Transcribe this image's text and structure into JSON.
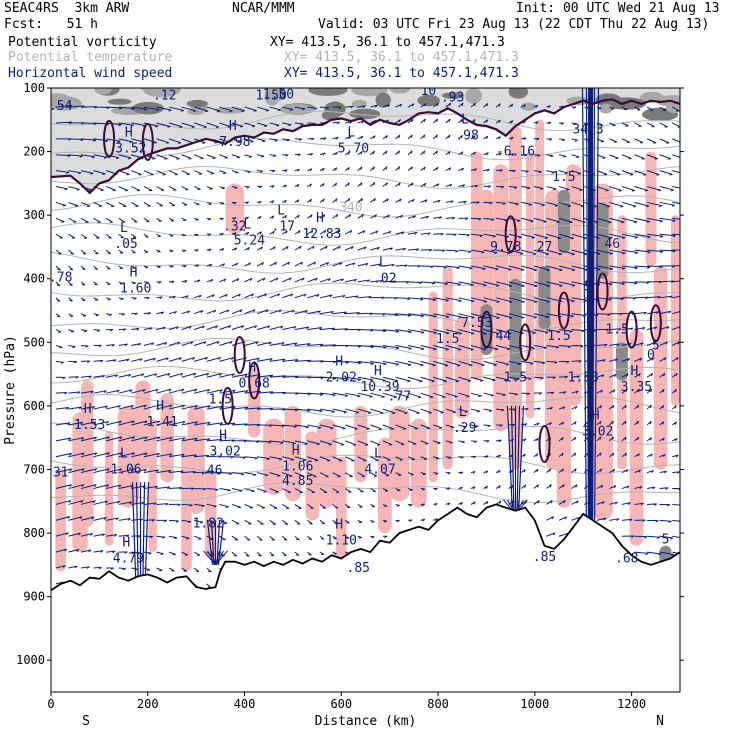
{
  "header": {
    "model": "SEAC4RS  3km ARW",
    "org": "NCAR/MMM",
    "init": "Init: 00 UTC Wed 21 Aug 13",
    "fcst": "Fcst:   51 h",
    "valid": "Valid: 03 UTC Fri 23 Aug 13 (22 CDT Thu 22 Aug 13)",
    "fields": [
      {
        "label": "Potential vorticity",
        "xy": "XY= 413.5, 36.1 to 457.1,471.3"
      },
      {
        "label": "Potential temperature",
        "xy": "XY= 413.5, 36.1 to 457.1,471.3"
      },
      {
        "label": "Horizontal wind speed",
        "xy": "XY= 413.5, 36.1 to 457.1,471.3"
      }
    ]
  },
  "colors": {
    "vorticity": "#000000",
    "temperature": "#b4b4b4",
    "wind": "#0b1f7a",
    "pv_fill": "#f7b6b6",
    "pv_contour": "#3a0a3c",
    "terrain": "#000000"
  },
  "chart_data": {
    "type": "cross-section",
    "xlabel": "Distance (km)",
    "ylabel": "Pressure (hPa)",
    "xlim": [
      0,
      1300
    ],
    "ylim": [
      1050,
      100
    ],
    "x_ticks": [
      0,
      200,
      400,
      600,
      800,
      1000,
      1200
    ],
    "y_ticks": [
      100,
      200,
      300,
      400,
      500,
      600,
      700,
      800,
      900,
      1000
    ],
    "x_end_labels": {
      "left": "S",
      "right": "N"
    },
    "theta_contour_label": {
      "text": "340",
      "x": 620,
      "p": 288
    },
    "terrain_profile": [
      [
        0,
        890
      ],
      [
        20,
        880
      ],
      [
        40,
        875
      ],
      [
        60,
        882
      ],
      [
        80,
        870
      ],
      [
        100,
        872
      ],
      [
        120,
        860
      ],
      [
        140,
        870
      ],
      [
        160,
        875
      ],
      [
        180,
        868
      ],
      [
        200,
        865
      ],
      [
        220,
        870
      ],
      [
        240,
        878
      ],
      [
        260,
        870
      ],
      [
        280,
        868
      ],
      [
        300,
        885
      ],
      [
        320,
        888
      ],
      [
        340,
        885
      ],
      [
        350,
        860
      ],
      [
        360,
        845
      ],
      [
        380,
        845
      ],
      [
        400,
        850
      ],
      [
        420,
        845
      ],
      [
        440,
        852
      ],
      [
        460,
        845
      ],
      [
        480,
        850
      ],
      [
        500,
        842
      ],
      [
        520,
        848
      ],
      [
        540,
        840
      ],
      [
        560,
        845
      ],
      [
        580,
        835
      ],
      [
        600,
        840
      ],
      [
        620,
        830
      ],
      [
        640,
        825
      ],
      [
        660,
        830
      ],
      [
        680,
        812
      ],
      [
        700,
        815
      ],
      [
        720,
        800
      ],
      [
        740,
        795
      ],
      [
        760,
        790
      ],
      [
        780,
        795
      ],
      [
        800,
        780
      ],
      [
        820,
        770
      ],
      [
        840,
        760
      ],
      [
        860,
        770
      ],
      [
        880,
        775
      ],
      [
        900,
        760
      ],
      [
        920,
        755
      ],
      [
        940,
        760
      ],
      [
        960,
        765
      ],
      [
        980,
        760
      ],
      [
        1000,
        780
      ],
      [
        1020,
        820
      ],
      [
        1040,
        825
      ],
      [
        1060,
        810
      ],
      [
        1080,
        790
      ],
      [
        1100,
        770
      ],
      [
        1120,
        780
      ],
      [
        1140,
        790
      ],
      [
        1160,
        800
      ],
      [
        1180,
        820
      ],
      [
        1200,
        835
      ],
      [
        1220,
        845
      ],
      [
        1240,
        850
      ],
      [
        1260,
        845
      ],
      [
        1280,
        840
      ],
      [
        1300,
        830
      ]
    ],
    "tropopause_profile": [
      [
        0,
        240
      ],
      [
        40,
        238
      ],
      [
        60,
        250
      ],
      [
        80,
        265
      ],
      [
        100,
        250
      ],
      [
        120,
        245
      ],
      [
        140,
        230
      ],
      [
        160,
        225
      ],
      [
        180,
        212
      ],
      [
        200,
        205
      ],
      [
        220,
        200
      ],
      [
        240,
        195
      ],
      [
        260,
        195
      ],
      [
        280,
        190
      ],
      [
        300,
        185
      ],
      [
        320,
        180
      ],
      [
        340,
        183
      ],
      [
        360,
        188
      ],
      [
        380,
        178
      ],
      [
        400,
        175
      ],
      [
        420,
        178
      ],
      [
        440,
        170
      ],
      [
        460,
        172
      ],
      [
        480,
        165
      ],
      [
        500,
        168
      ],
      [
        520,
        160
      ],
      [
        540,
        158
      ],
      [
        560,
        158
      ],
      [
        580,
        150
      ],
      [
        600,
        148
      ],
      [
        620,
        152
      ],
      [
        640,
        148
      ],
      [
        660,
        158
      ],
      [
        680,
        150
      ],
      [
        700,
        155
      ],
      [
        720,
        158
      ],
      [
        740,
        150
      ],
      [
        760,
        140
      ],
      [
        780,
        138
      ],
      [
        800,
        140
      ],
      [
        820,
        132
      ],
      [
        840,
        140
      ],
      [
        860,
        150
      ],
      [
        880,
        158
      ],
      [
        900,
        160
      ],
      [
        920,
        165
      ],
      [
        940,
        175
      ],
      [
        960,
        160
      ],
      [
        980,
        150
      ],
      [
        1000,
        140
      ],
      [
        1020,
        135
      ],
      [
        1040,
        140
      ],
      [
        1060,
        130
      ],
      [
        1080,
        125
      ],
      [
        1100,
        120
      ],
      [
        1120,
        125
      ],
      [
        1140,
        120
      ],
      [
        1160,
        118
      ],
      [
        1180,
        125
      ],
      [
        1200,
        120
      ],
      [
        1220,
        125
      ],
      [
        1240,
        120
      ],
      [
        1260,
        122
      ],
      [
        1280,
        120
      ],
      [
        1300,
        125
      ]
    ],
    "extrema_labels": [
      {
        "type": "H",
        "value": "1.50",
        "x": 455,
        "p": 112
      },
      {
        "type": "",
        "value": ".12",
        "x": 235,
        "p": 112
      },
      {
        "type": "",
        "value": ".54",
        "x": 20,
        "p": 128
      },
      {
        "type": "",
        "value": "1.50",
        "x": 470,
        "p": 110
      },
      {
        "type": "",
        "value": ".93",
        "x": 830,
        "p": 115
      },
      {
        "type": "",
        "value": "10",
        "x": 780,
        "p": 105
      },
      {
        "type": "H",
        "value": "3.52",
        "x": 165,
        "p": 195
      },
      {
        "type": "H",
        "value": "7.98",
        "x": 380,
        "p": 185
      },
      {
        "type": "L",
        "value": "5.70",
        "x": 625,
        "p": 195
      },
      {
        "type": "L",
        "value": ".98",
        "x": 860,
        "p": 175
      },
      {
        "type": "",
        "value": "-6.16",
        "x": 960,
        "p": 200
      },
      {
        "type": "",
        "value": "34.3",
        "x": 1110,
        "p": 165
      },
      {
        "type": "",
        "value": "1.5",
        "x": 1060,
        "p": 240
      },
      {
        "type": "",
        "value": ".32",
        "x": 380,
        "p": 318
      },
      {
        "type": "L",
        "value": "5.24",
        "x": 410,
        "p": 340
      },
      {
        "type": "L",
        "value": ".17",
        "x": 480,
        "p": 318
      },
      {
        "type": "H",
        "value": "12.83",
        "x": 560,
        "p": 330
      },
      {
        "type": "L",
        "value": ".05",
        "x": 155,
        "p": 345
      },
      {
        "type": "",
        "value": "9.78",
        "x": 940,
        "p": 350
      },
      {
        "type": "",
        "value": "27",
        "x": 1020,
        "p": 350
      },
      {
        "type": "",
        "value": "46",
        "x": 1160,
        "p": 345
      },
      {
        "type": "",
        "value": ".78",
        "x": 20,
        "p": 398
      },
      {
        "type": "H",
        "value": "1.60",
        "x": 175,
        "p": 415
      },
      {
        "type": "L",
        "value": ".02",
        "x": 690,
        "p": 400
      },
      {
        "type": "",
        "value": "5",
        "x": 1110,
        "p": 412
      },
      {
        "type": "",
        "value": "7.53",
        "x": 880,
        "p": 470
      },
      {
        "type": "",
        "value": "44",
        "x": 935,
        "p": 490
      },
      {
        "type": "",
        "value": "1.5",
        "x": 820,
        "p": 495
      },
      {
        "type": "",
        "value": "1.5",
        "x": 1050,
        "p": 490
      },
      {
        "type": "",
        "value": "1.5",
        "x": 1170,
        "p": 480
      },
      {
        "type": "",
        "value": "5",
        "x": 1250,
        "p": 505
      },
      {
        "type": "",
        "value": "1.5",
        "x": 960,
        "p": 555
      },
      {
        "type": "",
        "value": "0",
        "x": 1240,
        "p": 520
      },
      {
        "type": "",
        "value": "1.53",
        "x": 1100,
        "p": 555
      },
      {
        "type": "H",
        "value": "0.68",
        "x": 420,
        "p": 565
      },
      {
        "type": "H",
        "value": "2.02",
        "x": 600,
        "p": 555
      },
      {
        "type": "H",
        "value": "10.39",
        "x": 680,
        "p": 570
      },
      {
        "type": "",
        "value": ".77",
        "x": 720,
        "p": 585
      },
      {
        "type": "H",
        "value": "3.35",
        "x": 1210,
        "p": 570
      },
      {
        "type": "",
        "value": "1.5",
        "x": 350,
        "p": 590
      },
      {
        "type": "H",
        "value": "1.53",
        "x": 80,
        "p": 630
      },
      {
        "type": "H",
        "value": "1.41",
        "x": 230,
        "p": 625
      },
      {
        "type": "H",
        "value": "3.02",
        "x": 360,
        "p": 672
      },
      {
        "type": "H",
        "value": "3.02",
        "x": 1130,
        "p": 640
      },
      {
        "type": "L",
        "value": ".29",
        "x": 855,
        "p": 635
      },
      {
        "type": "L",
        "value": "1.06",
        "x": 155,
        "p": 700
      },
      {
        "type": "",
        "value": ".46",
        "x": 330,
        "p": 702
      },
      {
        "type": "H",
        "value": "1.06",
        "x": 510,
        "p": 695
      },
      {
        "type": "L",
        "value": "4.07",
        "x": 680,
        "p": 700
      },
      {
        "type": "",
        "value": "4.85",
        "x": 510,
        "p": 718
      },
      {
        "type": "",
        "value": "31",
        "x": 20,
        "p": 705
      },
      {
        "type": "",
        "value": "1.82",
        "x": 325,
        "p": 785
      },
      {
        "type": "H",
        "value": "1.10",
        "x": 600,
        "p": 812
      },
      {
        "type": "H",
        "value": "4.79",
        "x": 160,
        "p": 840
      },
      {
        "type": "",
        "value": ".85",
        "x": 635,
        "p": 855
      },
      {
        "type": "",
        "value": ".68",
        "x": 1190,
        "p": 840
      },
      {
        "type": "",
        "value": ".85",
        "x": 1020,
        "p": 838
      },
      {
        "type": "",
        "value": "5",
        "x": 1270,
        "p": 810
      }
    ]
  }
}
